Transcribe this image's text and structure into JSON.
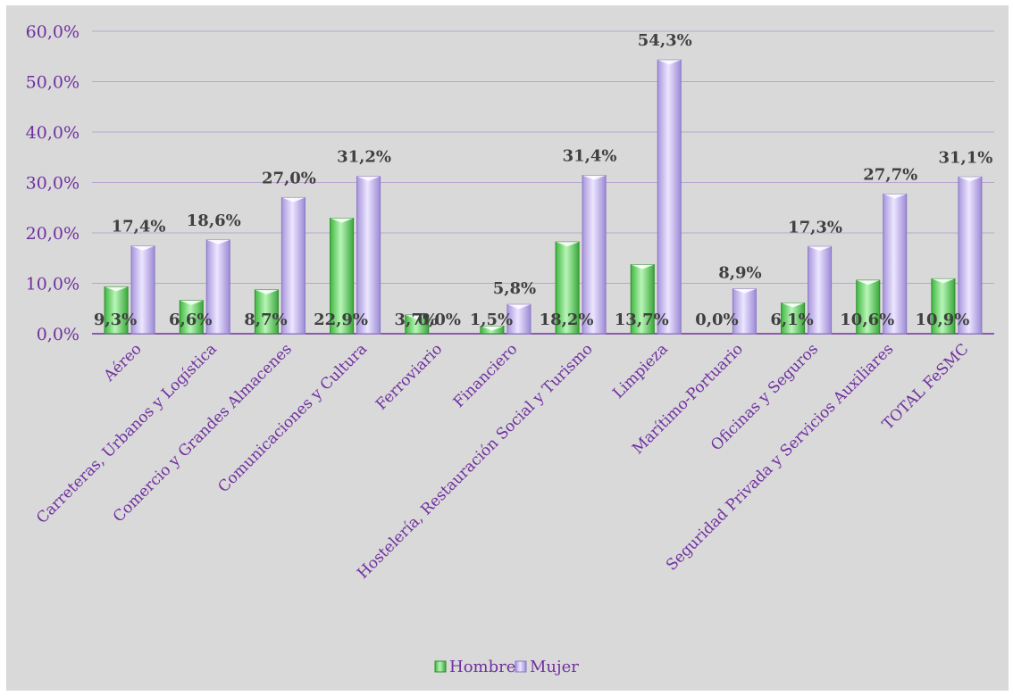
{
  "chart_data": {
    "type": "bar",
    "categories": [
      "Aéreo",
      "Carreteras, Urbanos y Logística",
      "Comercio y Grandes Almacenes",
      "Comunicaciones y Cultura",
      "Ferroviario",
      "Financiero",
      "Hostelería, Restauración Social y Turismo",
      "Limpieza",
      "Marítimo-Portuario",
      "Oficinas y Seguros",
      "Seguridad Privada y Servicios Auxiliares",
      "TOTAL FeSMC"
    ],
    "series": [
      {
        "name": "Hombre",
        "color": "#5fd35f",
        "values": [
          9.3,
          6.6,
          8.7,
          22.9,
          3.7,
          1.5,
          18.2,
          13.7,
          0.0,
          6.1,
          10.6,
          10.9
        ],
        "labels": [
          "9,3%",
          "6,6%",
          "8,7%",
          "22,9%",
          "3,7%",
          "1,5%",
          "18,2%",
          "13,7%",
          "0,0%",
          "6,1%",
          "10,6%",
          "10,9%"
        ]
      },
      {
        "name": "Mujer",
        "color": "#c7b8ec",
        "values": [
          17.4,
          18.6,
          27.0,
          31.2,
          0.0,
          5.8,
          31.4,
          54.3,
          8.9,
          17.3,
          27.7,
          31.1
        ],
        "labels": [
          "17,4%",
          "18,6%",
          "27,0%",
          "31,2%",
          "0,0%",
          "5,8%",
          "31,4%",
          "54,3%",
          "8,9%",
          "17,3%",
          "27,7%",
          "31,1%"
        ]
      }
    ],
    "yticks": [
      "0,0%",
      "10,0%",
      "20,0%",
      "30,0%",
      "40,0%",
      "50,0%",
      "60,0%"
    ],
    "ylim": [
      0,
      60
    ],
    "grid": true,
    "legend_position": "bottom",
    "title": "",
    "xlabel": "",
    "ylabel": ""
  }
}
